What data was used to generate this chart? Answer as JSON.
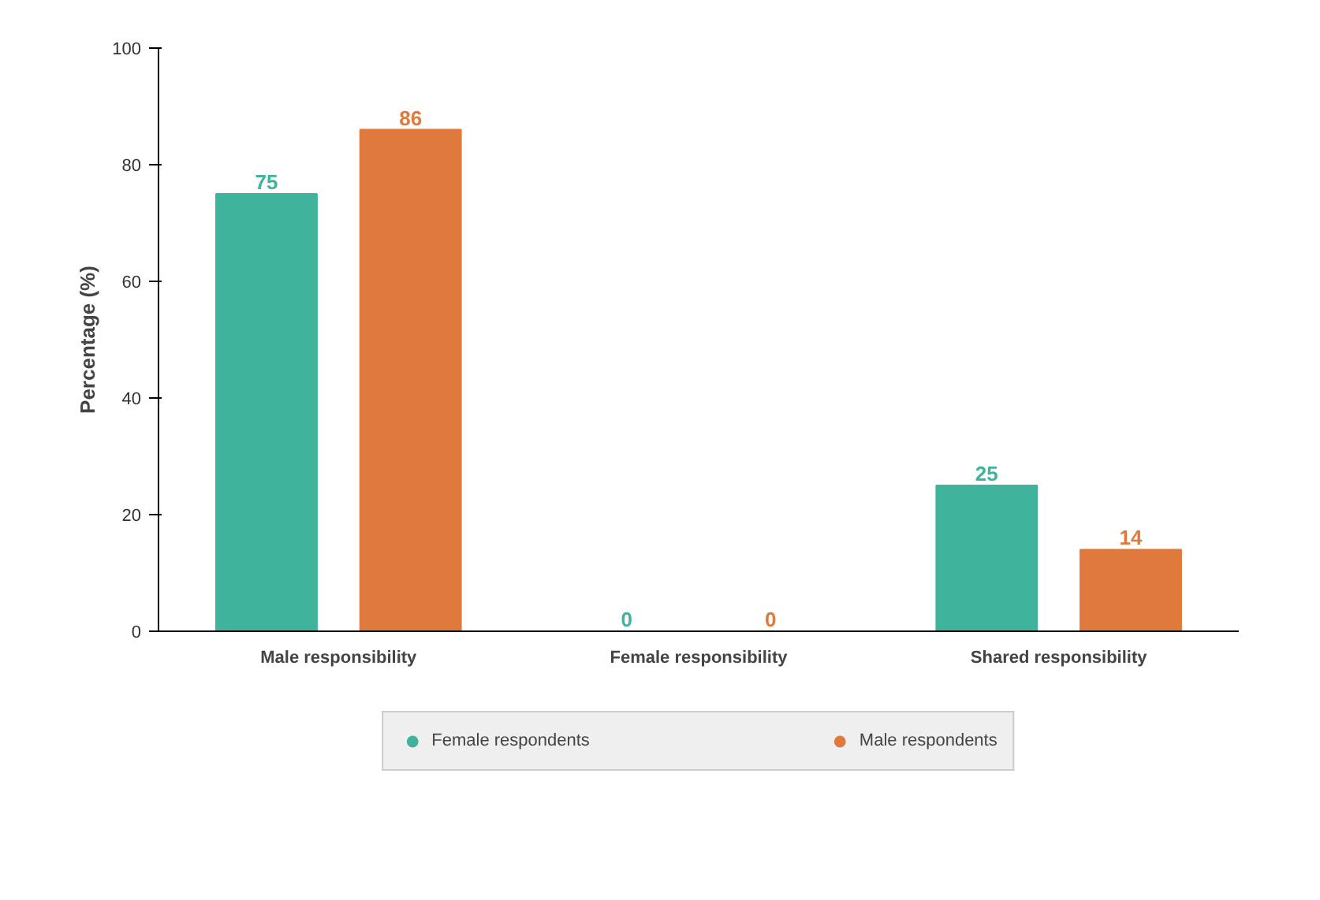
{
  "chart_data": {
    "type": "bar",
    "ylabel": "Percentage (%)",
    "categories": [
      "Male responsibility",
      "Female responsibility",
      "Shared responsibility"
    ],
    "series": [
      {
        "name": "Female respondents",
        "color": "#3fb39b",
        "values": [
          75,
          0,
          25
        ]
      },
      {
        "name": "Male respondents",
        "color": "#e07a3c",
        "values": [
          86,
          0,
          14
        ]
      }
    ],
    "ylim": [
      0,
      100
    ],
    "yticks": [
      0,
      20,
      40,
      60,
      80,
      100
    ],
    "grid": false,
    "legend": "bottom",
    "data_labels": true
  }
}
